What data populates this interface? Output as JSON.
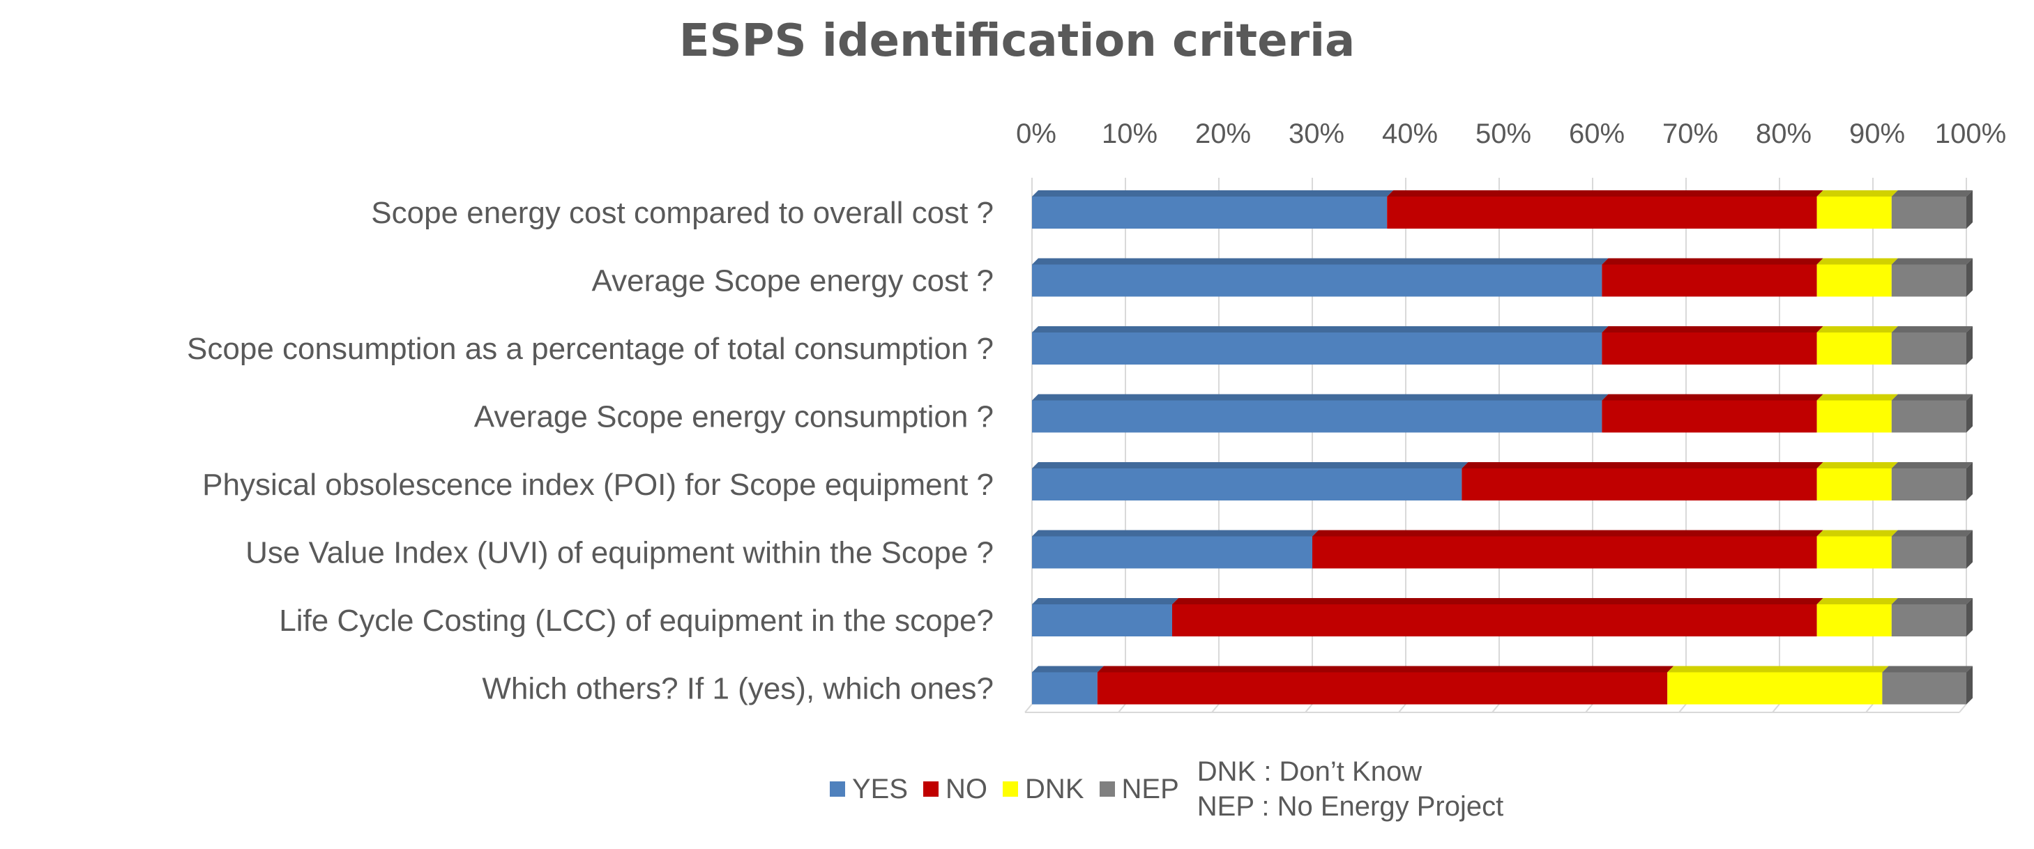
{
  "chart_data": {
    "type": "bar",
    "orientation": "horizontal",
    "stacked": "100%",
    "title": "ESPS identification criteria",
    "categories": [
      "Scope energy cost compared to overall cost ?",
      "Average Scope energy cost ?",
      "Scope consumption as a percentage of total consumption ?",
      "Average Scope energy consumption ?",
      "Physical obsolescence index (POI) for Scope equipment ?",
      "Use Value Index (UVI) of equipment within the Scope ?",
      "Life Cycle Costing (LCC) of equipment in the scope?",
      "Which others? If 1 (yes), which ones?"
    ],
    "series": [
      {
        "name": "YES",
        "color": "#4f81bd",
        "values": [
          38,
          61,
          61,
          61,
          46,
          30,
          15,
          7
        ]
      },
      {
        "name": "NO",
        "color": "#c00000",
        "values": [
          46,
          23,
          23,
          23,
          38,
          54,
          69,
          61
        ]
      },
      {
        "name": "DNK",
        "color": "#ffff00",
        "values": [
          8,
          8,
          8,
          8,
          8,
          8,
          8,
          23
        ]
      },
      {
        "name": "NEP",
        "color": "#808080",
        "values": [
          8,
          8,
          8,
          8,
          8,
          8,
          8,
          9
        ]
      }
    ],
    "xlim": [
      0,
      100
    ],
    "xticks": [
      "0%",
      "10%",
      "20%",
      "30%",
      "40%",
      "50%",
      "60%",
      "70%",
      "80%",
      "90%",
      "100%"
    ],
    "legend_position": "bottom",
    "legend_notes": [
      "DNK : Don’t Know",
      "NEP : No Energy Project"
    ]
  }
}
